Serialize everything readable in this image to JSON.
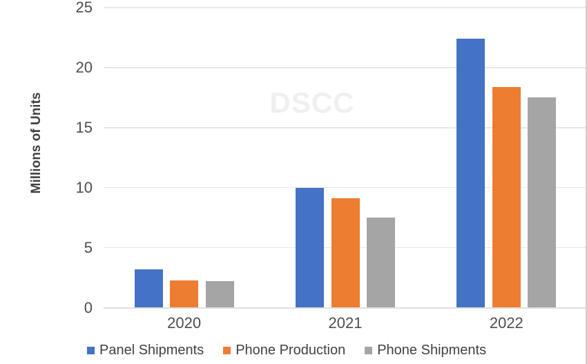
{
  "watermark": "DSCC",
  "chart_data": {
    "type": "bar",
    "title": "",
    "xlabel": "",
    "ylabel": "Millions of Units",
    "categories": [
      "2020",
      "2021",
      "2022"
    ],
    "series": [
      {
        "name": "Panel Shipments",
        "color": "#4472C4",
        "values": [
          3.2,
          10.0,
          22.4
        ]
      },
      {
        "name": "Phone Production",
        "color": "#ED7D31",
        "values": [
          2.3,
          9.1,
          18.4
        ]
      },
      {
        "name": "Phone Shipments",
        "color": "#A5A5A5",
        "values": [
          2.2,
          7.5,
          17.5
        ]
      }
    ],
    "ylim": [
      0,
      25
    ],
    "yticks": [
      0,
      5,
      10,
      15,
      20,
      25
    ],
    "grid": "horizontal",
    "legend_position": "bottom",
    "colors": {
      "gridline": "#E7E7E7",
      "axis_line": "#E0E0E0",
      "tick_text": "#4d4d4d",
      "axis_title_text": "#404040",
      "legend_text": "#404040",
      "watermark": "#efefef",
      "right_border": "#CFCFCF",
      "background": "#ffffff"
    }
  }
}
